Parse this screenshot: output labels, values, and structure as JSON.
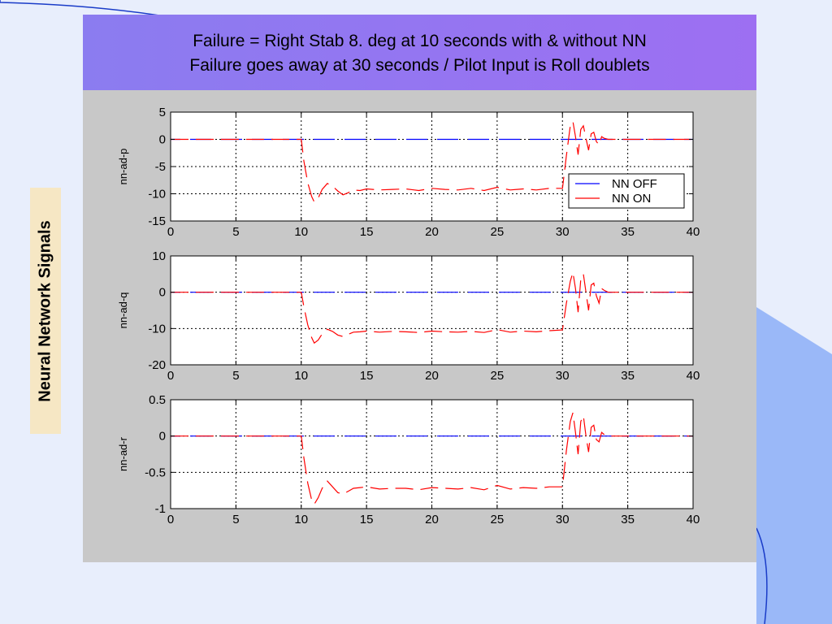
{
  "slide": {
    "title_line1": "Failure = Right Stab 8. deg at 10 seconds with & without NN",
    "title_line2": "Failure goes away at 30 seconds / Pilot Input is Roll doublets",
    "side_label": "Neural Network Signals"
  },
  "colors": {
    "background": "#e8eefc",
    "title_band": "#9b72f2",
    "plot_frame": "#c8c8c8",
    "side_label_bg": "#f6e7c4",
    "decor_right": "#9ab8f8",
    "nn_off": "#0000ff",
    "nn_on": "#ff0000"
  },
  "chart_data": [
    {
      "type": "line",
      "ylabel": "nn-ad-p",
      "xlim": [
        0,
        40
      ],
      "ylim": [
        -15,
        5
      ],
      "xticks": [
        0,
        5,
        10,
        15,
        20,
        25,
        30,
        35,
        40
      ],
      "yticks": [
        5,
        0,
        -5,
        -10,
        -15
      ],
      "grid": true,
      "legend": {
        "position": "right-middle",
        "entries": [
          "NN OFF",
          "NN ON"
        ]
      },
      "series": [
        {
          "name": "NN OFF",
          "color": "#0000ff",
          "x": [
            0,
            40
          ],
          "y": [
            0,
            0
          ]
        },
        {
          "name": "NN ON",
          "color": "#ff0000",
          "x": [
            0,
            10,
            10.2,
            10.5,
            10.8,
            11.0,
            11.3,
            11.6,
            12.0,
            12.4,
            12.8,
            13.2,
            13.6,
            14.0,
            14.5,
            15,
            16,
            17,
            18,
            19,
            20,
            21,
            22,
            23,
            24,
            25,
            26,
            27,
            28,
            29,
            30,
            30.3,
            30.6,
            30.8,
            31.0,
            31.2,
            31.4,
            31.6,
            31.8,
            32.0,
            32.2,
            32.4,
            32.6,
            32.8,
            33.0,
            33.2,
            33.5,
            34,
            40
          ],
          "y": [
            0,
            0,
            -4,
            -8,
            -10.5,
            -11.5,
            -10.8,
            -9.2,
            -8.1,
            -8.6,
            -9.5,
            -10.2,
            -9.8,
            -9.3,
            -9.4,
            -9.1,
            -9.3,
            -9.2,
            -9.1,
            -9.4,
            -9.0,
            -9.2,
            -9.3,
            -9.0,
            -9.4,
            -8.8,
            -9.3,
            -9.1,
            -9.3,
            -9.0,
            -9.0,
            -3,
            2.5,
            3.3,
            0.5,
            -2.8,
            1.8,
            2.5,
            0.2,
            -2.0,
            1.0,
            1.3,
            -0.4,
            -1.0,
            0.5,
            0.2,
            0,
            0,
            0
          ]
        }
      ]
    },
    {
      "type": "line",
      "ylabel": "nn-ad-q",
      "xlim": [
        0,
        40
      ],
      "ylim": [
        -20,
        10
      ],
      "xticks": [
        0,
        5,
        10,
        15,
        20,
        25,
        30,
        35,
        40
      ],
      "yticks": [
        10,
        0,
        -10,
        -20
      ],
      "grid": true,
      "series": [
        {
          "name": "NN OFF",
          "color": "#0000ff",
          "x": [
            0,
            40
          ],
          "y": [
            0,
            0
          ]
        },
        {
          "name": "NN ON",
          "color": "#ff0000",
          "x": [
            0,
            10,
            10.2,
            10.5,
            10.8,
            11.0,
            11.3,
            11.6,
            12.0,
            12.4,
            12.8,
            13.2,
            13.6,
            14.0,
            14.5,
            15,
            16,
            17,
            18,
            19,
            20,
            21,
            22,
            23,
            24,
            25,
            26,
            27,
            28,
            29,
            30,
            30.3,
            30.6,
            30.8,
            31.0,
            31.2,
            31.4,
            31.6,
            31.8,
            32.0,
            32.2,
            32.4,
            32.6,
            32.8,
            33.0,
            33.2,
            33.5,
            34,
            40
          ],
          "y": [
            0,
            0,
            -4,
            -9,
            -12.5,
            -14,
            -13.2,
            -11.5,
            -10.2,
            -10.8,
            -11.8,
            -12.2,
            -11.6,
            -11.0,
            -10.9,
            -10.7,
            -11.0,
            -10.8,
            -10.9,
            -11.1,
            -10.7,
            -10.9,
            -11.0,
            -10.8,
            -11.1,
            -10.3,
            -11.0,
            -10.7,
            -10.9,
            -10.6,
            -10.4,
            -3,
            3,
            5.5,
            1,
            -5.5,
            3.5,
            5,
            0,
            -5,
            2,
            2.5,
            -1,
            -3,
            1,
            0.5,
            0,
            0,
            0
          ]
        }
      ]
    },
    {
      "type": "line",
      "ylabel": "nn-ad-r",
      "xlim": [
        0,
        40
      ],
      "ylim": [
        -1,
        0.5
      ],
      "xticks": [
        0,
        5,
        10,
        15,
        20,
        25,
        30,
        35,
        40
      ],
      "yticks": [
        0.5,
        0,
        -0.5,
        -1
      ],
      "grid": true,
      "series": [
        {
          "name": "NN OFF",
          "color": "#0000ff",
          "x": [
            0,
            40
          ],
          "y": [
            0,
            0
          ]
        },
        {
          "name": "NN ON",
          "color": "#ff0000",
          "x": [
            0,
            10,
            10.2,
            10.5,
            10.8,
            11.0,
            11.3,
            11.6,
            12.0,
            12.4,
            12.8,
            13.2,
            13.6,
            14.0,
            14.5,
            15,
            16,
            17,
            18,
            19,
            20,
            21,
            22,
            23,
            24,
            25,
            26,
            27,
            28,
            29,
            30,
            30.3,
            30.6,
            30.8,
            31.0,
            31.2,
            31.4,
            31.6,
            31.8,
            32.0,
            32.2,
            32.4,
            32.6,
            32.8,
            33.0,
            33.2,
            33.5,
            34,
            40
          ],
          "y": [
            0,
            0,
            -0.3,
            -0.65,
            -0.88,
            -0.94,
            -0.85,
            -0.72,
            -0.62,
            -0.7,
            -0.78,
            -0.8,
            -0.76,
            -0.72,
            -0.71,
            -0.7,
            -0.73,
            -0.72,
            -0.72,
            -0.74,
            -0.71,
            -0.72,
            -0.73,
            -0.71,
            -0.74,
            -0.68,
            -0.73,
            -0.71,
            -0.72,
            -0.7,
            -0.7,
            -0.2,
            0.2,
            0.32,
            0.05,
            -0.25,
            0.2,
            0.28,
            0,
            -0.22,
            0.12,
            0.15,
            -0.05,
            -0.08,
            0.05,
            0.02,
            0,
            0,
            0
          ]
        }
      ]
    }
  ]
}
